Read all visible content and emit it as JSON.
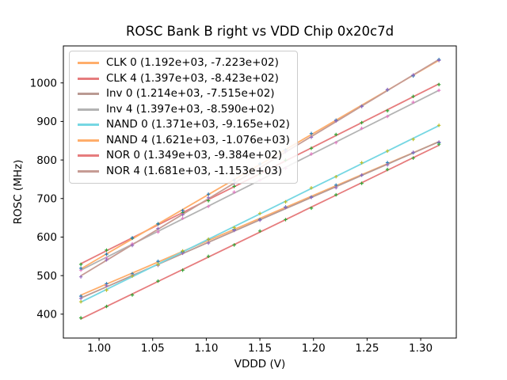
{
  "chart_data": {
    "type": "line",
    "title": "ROSC Bank B right vs VDD Chip 0x20c7d",
    "xlabel": "VDDD (V)",
    "ylabel": "ROSC (MHz)",
    "xlim": [
      0.9667,
      1.3332
    ],
    "ylim": [
      338,
      1096
    ],
    "xticks": [
      1.0,
      1.05,
      1.1,
      1.15,
      1.2,
      1.25,
      1.3
    ],
    "xtick_labels": [
      "1.00",
      "1.05",
      "1.10",
      "1.15",
      "1.20",
      "1.25",
      "1.30"
    ],
    "yticks": [
      400,
      500,
      600,
      700,
      800,
      900,
      1000
    ],
    "ytick_labels": [
      "400",
      "500",
      "600",
      "700",
      "800",
      "900",
      "1000"
    ],
    "grid": false,
    "legend_position": "upper-left",
    "frame_color": "#000000",
    "background": "#ffffff",
    "x_values": [
      0.983,
      1.007,
      1.031,
      1.055,
      1.078,
      1.102,
      1.126,
      1.15,
      1.174,
      1.198,
      1.221,
      1.245,
      1.269,
      1.293,
      1.317
    ],
    "series": [
      {
        "name": "CLK 0",
        "label": "CLK 0 (1.192e+03, -7.223e+02)",
        "slope": 1192,
        "intercept": -722.3,
        "line_color": "#ffae6b",
        "marker_color": "#1f77b4"
      },
      {
        "name": "CLK 4",
        "label": "CLK 4 (1.397e+03, -8.423e+02)",
        "slope": 1397,
        "intercept": -842.3,
        "line_color": "#e67c7d",
        "marker_color": "#2ca02c"
      },
      {
        "name": "Inv 0",
        "label": "Inv 0 (1.214e+03, -7.515e+02)",
        "slope": 1214,
        "intercept": -751.5,
        "line_color": "#ba9a93",
        "marker_color": "#9467bd"
      },
      {
        "name": "Inv 4",
        "label": "Inv 4 (1.397e+03, -8.590e+02)",
        "slope": 1397,
        "intercept": -859.0,
        "line_color": "#b3b3b3",
        "marker_color": "#e377c2"
      },
      {
        "name": "NAND 0",
        "label": "NAND 0 (1.371e+03, -9.165e+02)",
        "slope": 1371,
        "intercept": -916.5,
        "line_color": "#76d7e3",
        "marker_color": "#bcbd22"
      },
      {
        "name": "NAND 4",
        "label": "NAND 4 (1.621e+03, -1.076e+03)",
        "slope": 1621,
        "intercept": -1076.0,
        "line_color": "#ffae6b",
        "marker_color": "#1f77b4"
      },
      {
        "name": "NOR 0",
        "label": "NOR 0 (1.349e+03, -9.384e+02)",
        "slope": 1349,
        "intercept": -938.4,
        "line_color": "#e67c7d",
        "marker_color": "#2ca02c"
      },
      {
        "name": "NOR 4",
        "label": "NOR 4 (1.681e+03, -1.153e+03)",
        "slope": 1681,
        "intercept": -1153.0,
        "line_color": "#c69c94",
        "marker_color": "#9467bd"
      }
    ]
  }
}
